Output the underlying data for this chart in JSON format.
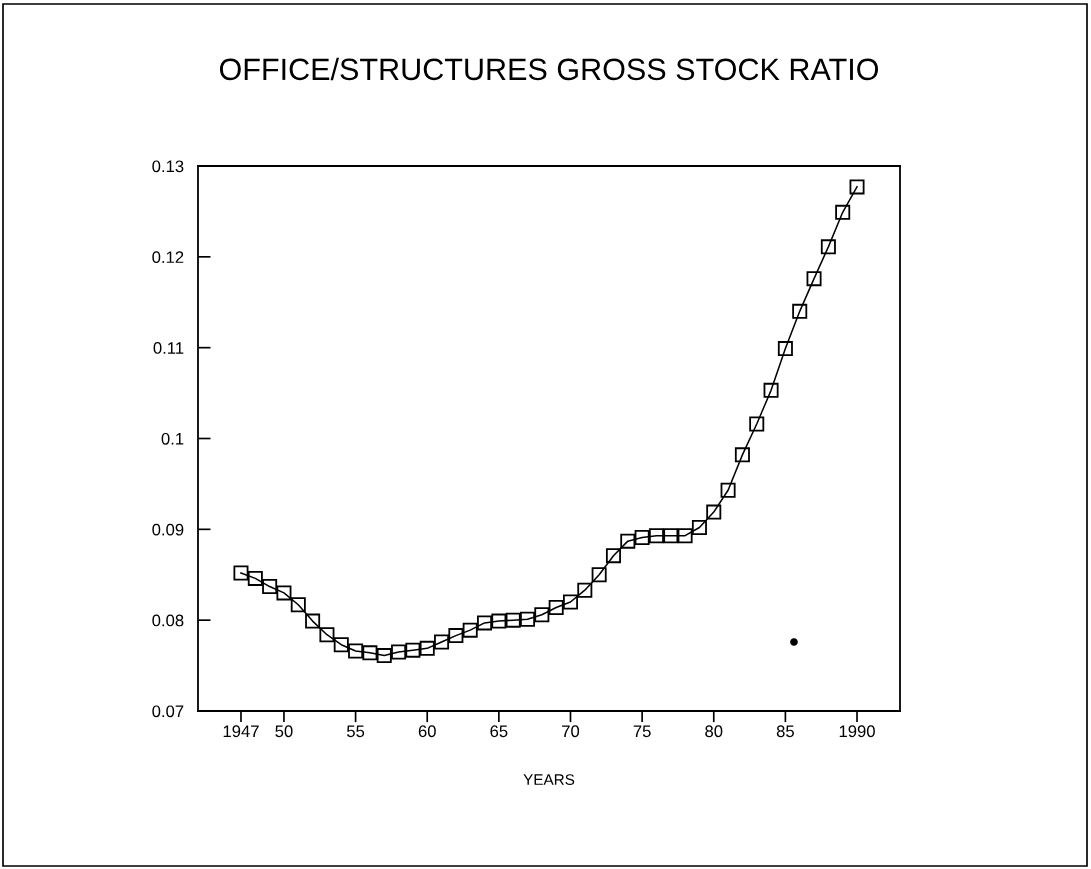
{
  "chart_data": {
    "type": "line",
    "title": "OFFICE/STRUCTURES GROSS STOCK RATIO",
    "xlabel": "YEARS",
    "x": [
      1947,
      1948,
      1949,
      1950,
      1951,
      1952,
      1953,
      1954,
      1955,
      1956,
      1957,
      1958,
      1959,
      1960,
      1961,
      1962,
      1963,
      1964,
      1965,
      1966,
      1967,
      1968,
      1969,
      1970,
      1971,
      1972,
      1973,
      1974,
      1975,
      1976,
      1977,
      1978,
      1979,
      1980,
      1981,
      1982,
      1983,
      1984,
      1985,
      1986,
      1987,
      1988,
      1989,
      1990
    ],
    "series": [
      {
        "color": "#000000",
        "values": [
          0.0852,
          0.0846,
          0.0837,
          0.083,
          0.0817,
          0.0799,
          0.0784,
          0.0773,
          0.0766,
          0.0764,
          0.0761,
          0.0765,
          0.0767,
          0.0769,
          0.0776,
          0.0783,
          0.0789,
          0.0797,
          0.0799,
          0.08,
          0.0801,
          0.0806,
          0.0814,
          0.082,
          0.0833,
          0.085,
          0.0871,
          0.0887,
          0.0891,
          0.0893,
          0.0893,
          0.0893,
          0.0902,
          0.0919,
          0.0943,
          0.0982,
          0.1016,
          0.1053,
          0.1099,
          0.114,
          0.1176,
          0.1211,
          0.1249,
          0.1277
        ]
      },
      {
        "type": "scatter",
        "marker": "circle",
        "color": "#000000",
        "x": [
          1985.6
        ],
        "values": [
          0.0776
        ]
      }
    ],
    "xlim": [
      1944,
      1993
    ],
    "ylim": [
      0.07,
      0.13
    ],
    "xticks": [
      1947,
      {
        "value": 1950,
        "label": "50"
      },
      {
        "value": 1955,
        "label": "55"
      },
      {
        "value": 1960,
        "label": "60"
      },
      {
        "value": 1965,
        "label": "65"
      },
      {
        "value": 1970,
        "label": "70"
      },
      {
        "value": 1975,
        "label": "75"
      },
      {
        "value": 1980,
        "label": "80"
      },
      {
        "value": 1985,
        "label": "85"
      },
      1990
    ],
    "yticks": [
      0.07,
      0.08,
      0.09,
      0.1,
      0.11,
      0.12,
      0.13
    ],
    "marker": "square",
    "line_style": "solid",
    "grid": false
  }
}
